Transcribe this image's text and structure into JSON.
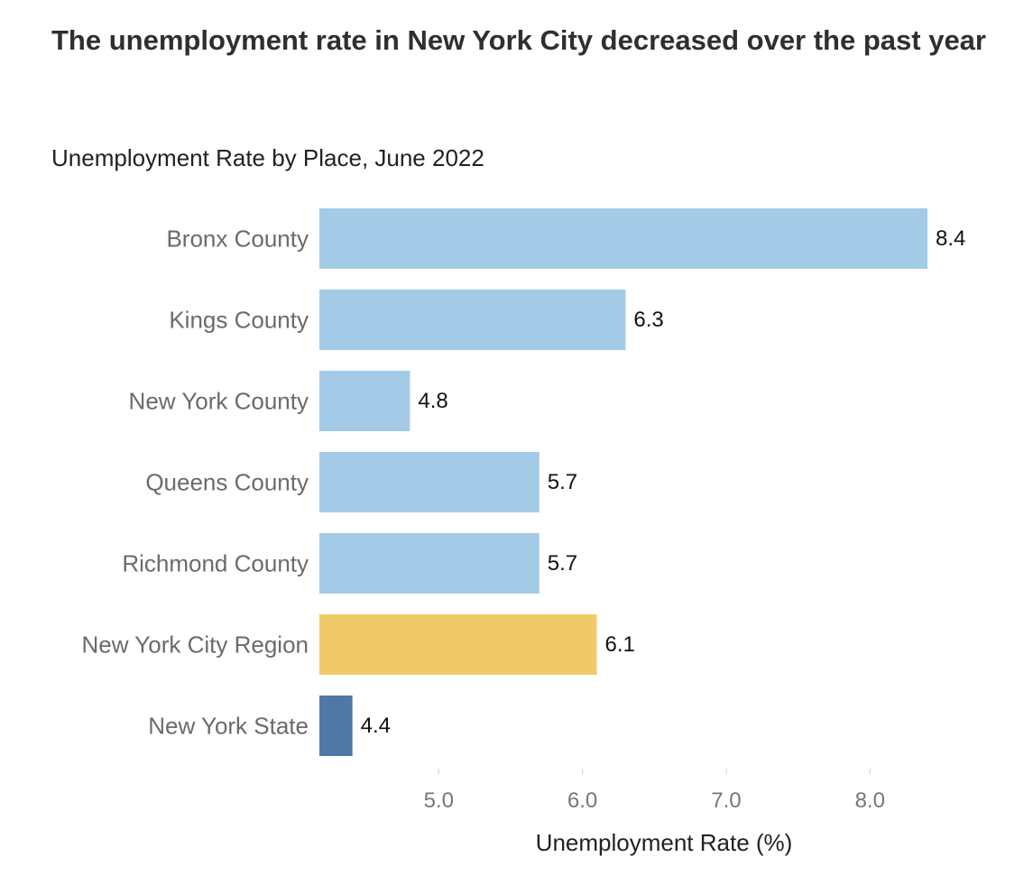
{
  "chart_data": {
    "type": "bar",
    "orientation": "horizontal",
    "title": "The unemployment rate in New York City decreased over the past year",
    "subtitle": "Unemployment Rate by Place, June 2022",
    "xlabel": "Unemployment Rate (%)",
    "ylabel": "",
    "categories": [
      "Bronx County",
      "Kings County",
      "New York County",
      "Queens County",
      "Richmond County",
      "New York City Region",
      "New York State"
    ],
    "values": [
      8.4,
      6.3,
      4.8,
      5.7,
      5.7,
      6.1,
      4.4
    ],
    "value_labels": [
      "8.4",
      "6.3",
      "4.8",
      "5.7",
      "5.7",
      "6.1",
      "4.4"
    ],
    "colors": [
      "#a3cbe7",
      "#a3cbe7",
      "#a3cbe7",
      "#a3cbe7",
      "#a3cbe7",
      "#f0ca68",
      "#4f78a6"
    ],
    "xlim": [
      4.17,
      8.4
    ],
    "xticks": [
      5.0,
      6.0,
      7.0,
      8.0
    ],
    "xtick_labels": [
      "5.0",
      "6.0",
      "7.0",
      "8.0"
    ],
    "grid": false,
    "legend": false
  }
}
